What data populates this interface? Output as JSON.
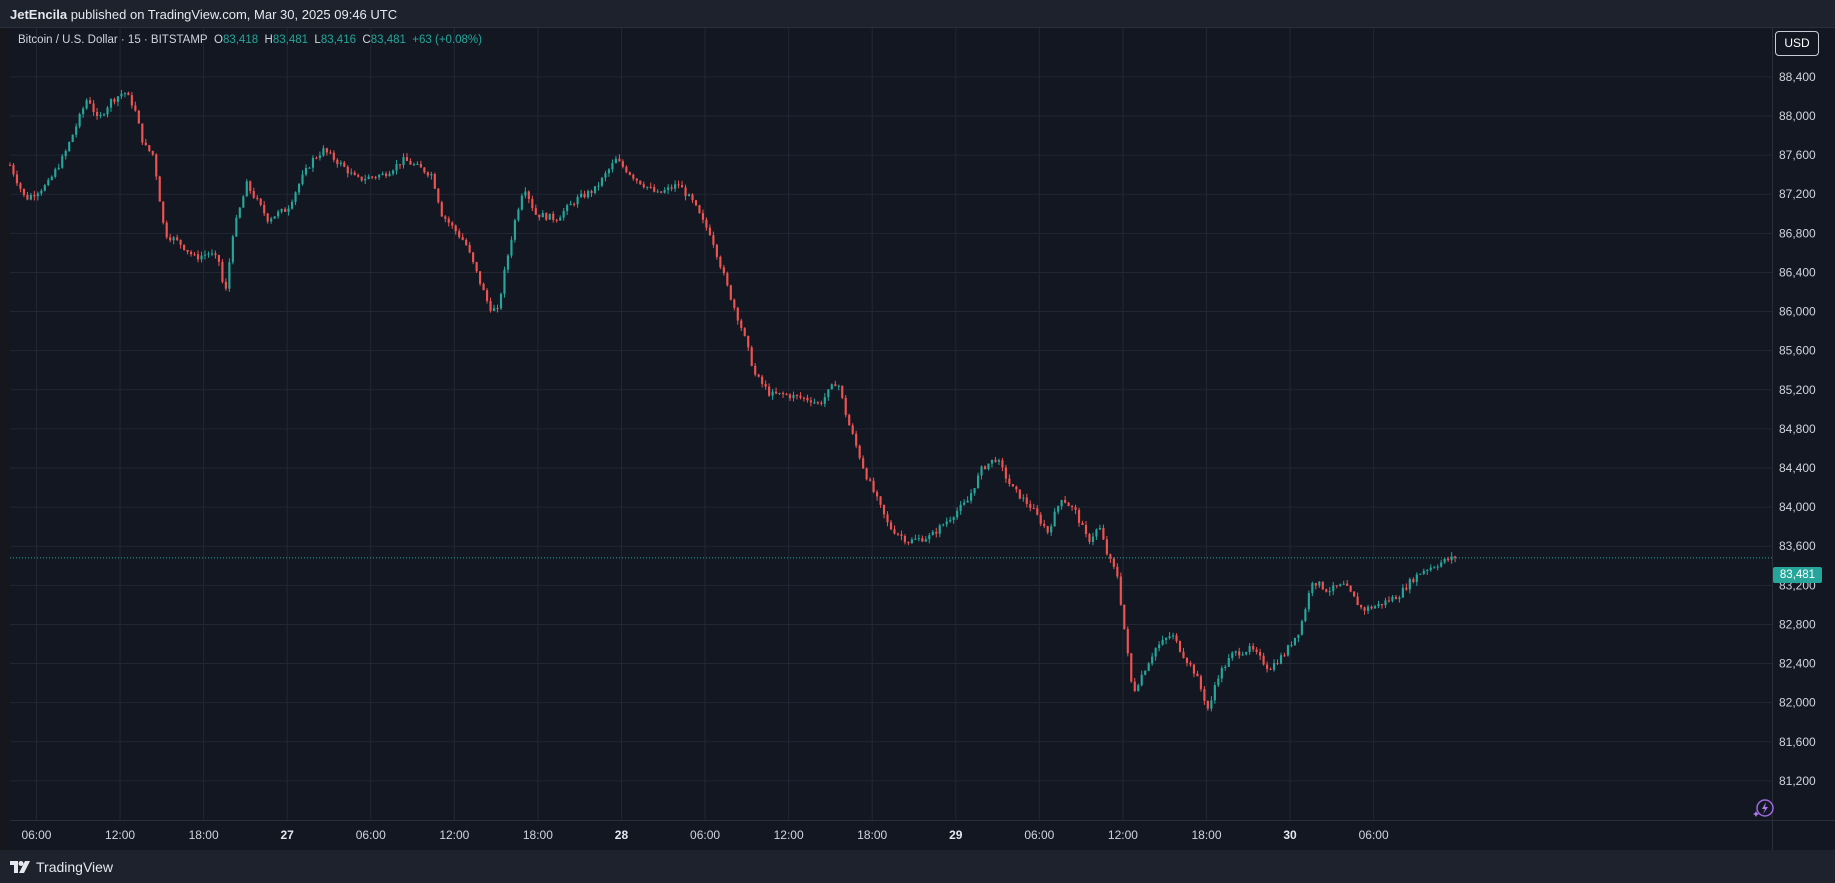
{
  "header": {
    "author": "JetEncila",
    "published_text": " published on TradingView.com, Mar 30, 2025 09:46 UTC"
  },
  "legend": {
    "symbol": "Bitcoin / U.S. Dollar · 15 · BITSTAMP",
    "open_label": "O",
    "open": "83,418",
    "high_label": "H",
    "high": "83,481",
    "low_label": "L",
    "low": "83,416",
    "close_label": "C",
    "close": "83,481",
    "change": "+63 (+0.08%)"
  },
  "currency_button": "USD",
  "last_price_label": "83,481",
  "footer": {
    "brand": "TradingView"
  },
  "colors": {
    "up": "#26a69a",
    "down": "#ef5350",
    "background": "#131722",
    "grid": "#232734",
    "last_price_line": "#26a69a"
  },
  "chart_data": {
    "type": "candlestick",
    "symbol": "BTCUSD",
    "exchange": "BITSTAMP",
    "interval": "15",
    "ylim": [
      80800,
      88900
    ],
    "y_ticks": [
      81200,
      81600,
      82000,
      82400,
      82800,
      83200,
      83600,
      84000,
      84400,
      84800,
      85200,
      85600,
      86000,
      86400,
      86800,
      87200,
      87600,
      88000,
      88400
    ],
    "y_tick_labels": [
      "81,200",
      "81,600",
      "82,000",
      "82,400",
      "82,800",
      "83,200",
      "83,600",
      "84,000",
      "84,400",
      "84,800",
      "85,200",
      "85,600",
      "86,000",
      "86,400",
      "86,800",
      "87,200",
      "87,600",
      "88,000",
      "88,400"
    ],
    "x_range_hours": [
      -19.9,
      106.6
    ],
    "x_ticks": [
      {
        "label": "06:00",
        "hour": -18,
        "day": false
      },
      {
        "label": "12:00",
        "hour": -12,
        "day": false
      },
      {
        "label": "18:00",
        "hour": -6,
        "day": false
      },
      {
        "label": "27",
        "hour": 0,
        "day": true
      },
      {
        "label": "06:00",
        "hour": 6,
        "day": false
      },
      {
        "label": "12:00",
        "hour": 12,
        "day": false
      },
      {
        "label": "18:00",
        "hour": 18,
        "day": false
      },
      {
        "label": "28",
        "hour": 24,
        "day": true
      },
      {
        "label": "06:00",
        "hour": 30,
        "day": false
      },
      {
        "label": "12:00",
        "hour": 36,
        "day": false
      },
      {
        "label": "18:00",
        "hour": 42,
        "day": false
      },
      {
        "label": "29",
        "hour": 48,
        "day": true
      },
      {
        "label": "06:00",
        "hour": 54,
        "day": false
      },
      {
        "label": "12:00",
        "hour": 60,
        "day": false
      },
      {
        "label": "18:00",
        "hour": 66,
        "day": false
      },
      {
        "label": "30",
        "hour": 72,
        "day": true
      },
      {
        "label": "06:00",
        "hour": 78,
        "day": false
      }
    ],
    "path_hours": [
      -19.9,
      -18.8,
      -17.2,
      -16.0,
      -14.3,
      -13.6,
      -12.7,
      -11.7,
      -11.0,
      -10.3,
      -9.6,
      -8.8,
      -7.7,
      -6.6,
      -5.6,
      -4.8,
      -4.5,
      -3.9,
      -2.9,
      -1.4,
      0.0,
      1.0,
      1.8,
      2.6,
      3.9,
      5.0,
      6.9,
      8.4,
      10.4,
      11.1,
      12.8,
      14.5,
      15.1,
      15.6,
      16.3,
      17.0,
      17.8,
      19.3,
      20.8,
      22.1,
      23.6,
      25.1,
      26.6,
      28.1,
      29.2,
      29.9,
      30.4,
      31.6,
      32.7,
      33.6,
      34.7,
      35.7,
      37.6,
      38.2,
      39.5,
      40.2,
      41.5,
      43.2,
      44.6,
      46.2,
      48.0,
      48.8,
      49.9,
      50.9,
      52.0,
      53.4,
      54.6,
      55.6,
      56.6,
      57.5,
      58.3,
      58.9,
      59.6,
      60.7,
      62.3,
      63.5,
      64.3,
      65.2,
      66.2,
      66.7,
      67.9,
      69.2,
      70.5,
      71.6,
      72.7,
      73.6,
      74.7,
      75.9,
      77.2,
      78.4,
      79.8,
      80.7,
      81.5,
      82.3,
      83.1,
      83.8
    ],
    "path_close": [
      87500,
      87150,
      87300,
      87600,
      88200,
      87950,
      88150,
      88250,
      88100,
      87700,
      87600,
      86800,
      86700,
      86550,
      86600,
      86500,
      86100,
      86800,
      87300,
      86950,
      87050,
      87350,
      87550,
      87650,
      87500,
      87350,
      87400,
      87550,
      87400,
      87000,
      86700,
      86050,
      86000,
      86400,
      86900,
      87300,
      87000,
      86950,
      87150,
      87250,
      87550,
      87350,
      87200,
      87300,
      87100,
      86900,
      86800,
      86250,
      85800,
      85350,
      85150,
      85150,
      85100,
      85050,
      85300,
      84900,
      84350,
      83800,
      83650,
      83700,
      83950,
      84050,
      84400,
      84500,
      84200,
      84000,
      83750,
      84100,
      83950,
      83650,
      83800,
      83500,
      83300,
      82100,
      82550,
      82700,
      82500,
      82300,
      81900,
      82250,
      82500,
      82550,
      82350,
      82500,
      82750,
      83250,
      83150,
      83200,
      82950,
      83000,
      83100,
      83250,
      83350,
      83400,
      83450,
      83481
    ]
  }
}
